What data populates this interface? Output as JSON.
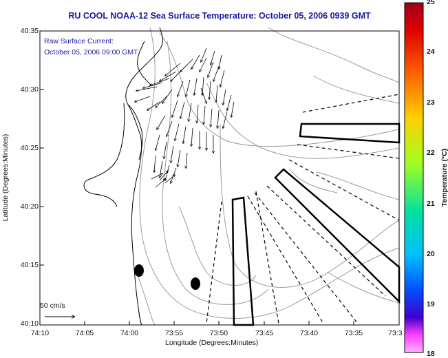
{
  "title": "RU COOL  NOAA-12  Sea Surface Temperature:  October 05, 2006 0939 GMT",
  "subtitle_line1": "Raw Surface Current:",
  "subtitle_line2": "October 05, 2006 09:00 GMT",
  "axes": {
    "ylabel": "Latitude (Degrees:Minutes)",
    "xlabel": "Longitude (Degrees:Minutes)",
    "yticks": [
      "40:35",
      "40:30",
      "40:25",
      "40:20",
      "40:15",
      "40:10"
    ],
    "xticks": [
      "74:10",
      "74:05",
      "74:00",
      "73:55",
      "73:50",
      "73:45",
      "73:40",
      "73:35",
      "73:3"
    ]
  },
  "colorbar": {
    "title": "Temperature (°C)",
    "ticks": [
      "25",
      "24",
      "23",
      "22",
      "21",
      "20",
      "19",
      "18"
    ],
    "colors": [
      "#a0001a",
      "#e00000",
      "#ff6000",
      "#ffd000",
      "#a0ff20",
      "#00e0a0",
      "#00c0ff",
      "#0050ff",
      "#4000d0",
      "#ff40ff",
      "#ffb0ff"
    ]
  },
  "scale": {
    "label": "50 cm/s"
  },
  "colors": {
    "title": "#1a1aa0",
    "land_line": "#000000",
    "bathymetry": "#999999"
  }
}
